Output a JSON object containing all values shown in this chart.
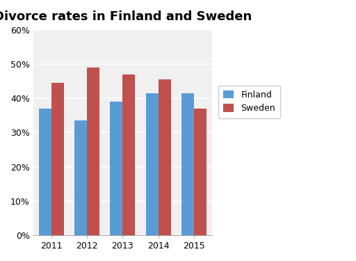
{
  "title": "Divorce rates in Finland and Sweden",
  "years": [
    "2011",
    "2012",
    "2013",
    "2014",
    "2015"
  ],
  "finland": [
    0.37,
    0.335,
    0.39,
    0.415,
    0.415
  ],
  "sweden": [
    0.445,
    0.49,
    0.47,
    0.455,
    0.37
  ],
  "finland_color": "#5B9BD5",
  "sweden_color": "#C0504D",
  "ylim": [
    0,
    0.6
  ],
  "yticks": [
    0,
    0.1,
    0.2,
    0.3,
    0.4,
    0.5,
    0.6
  ],
  "legend_labels": [
    "Finland",
    "Sweden"
  ],
  "background_color": "#FFFFFF",
  "plot_bg_color": "#F0F0F0",
  "title_fontsize": 13,
  "bar_width": 0.35,
  "grid_color": "#FFFFFF"
}
